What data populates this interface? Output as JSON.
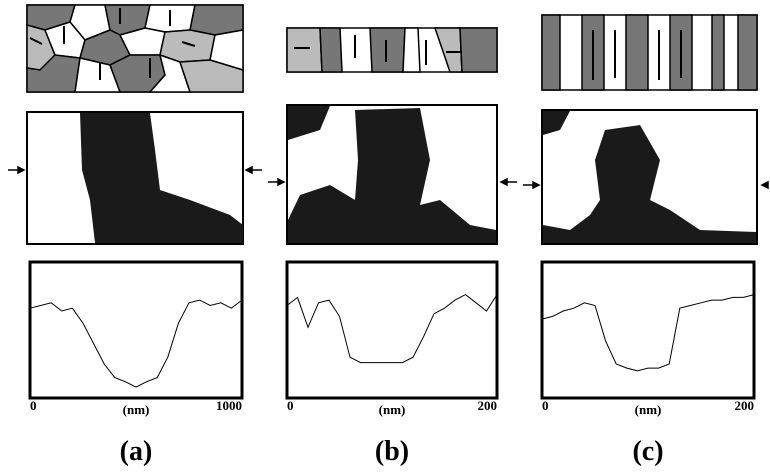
{
  "chart_data": [
    {
      "type": "line",
      "label": "(a)",
      "xlabel": "(nm)",
      "xlim": [
        0,
        1000
      ],
      "xticks": [
        0,
        1000
      ],
      "ylim": [
        0,
        1
      ],
      "x": [
        0,
        50,
        100,
        150,
        200,
        250,
        300,
        350,
        400,
        450,
        500,
        550,
        600,
        650,
        700,
        750,
        800,
        850,
        900,
        950,
        1000
      ],
      "values": [
        0.66,
        0.68,
        0.7,
        0.64,
        0.66,
        0.55,
        0.4,
        0.25,
        0.15,
        0.12,
        0.08,
        0.12,
        0.15,
        0.3,
        0.55,
        0.7,
        0.72,
        0.68,
        0.7,
        0.66,
        0.72
      ],
      "color": "#000000"
    },
    {
      "type": "line",
      "label": "(b)",
      "xlabel": "(nm)",
      "xlim": [
        0,
        200
      ],
      "xticks": [
        0,
        200
      ],
      "ylim": [
        0,
        1
      ],
      "x": [
        0,
        10,
        20,
        30,
        40,
        50,
        60,
        70,
        80,
        90,
        100,
        110,
        120,
        130,
        140,
        150,
        160,
        170,
        180,
        190,
        200
      ],
      "values": [
        0.68,
        0.74,
        0.52,
        0.7,
        0.72,
        0.6,
        0.3,
        0.26,
        0.26,
        0.26,
        0.26,
        0.26,
        0.3,
        0.45,
        0.62,
        0.66,
        0.72,
        0.76,
        0.7,
        0.64,
        0.76
      ],
      "color": "#000000"
    },
    {
      "type": "line",
      "label": "(c)",
      "xlabel": "(nm)",
      "xlim": [
        0,
        200
      ],
      "xticks": [
        0,
        200
      ],
      "ylim": [
        0,
        1
      ],
      "x": [
        0,
        10,
        20,
        30,
        40,
        50,
        60,
        70,
        80,
        90,
        100,
        110,
        120,
        130,
        140,
        150,
        160,
        170,
        180,
        190,
        200
      ],
      "values": [
        0.58,
        0.6,
        0.64,
        0.66,
        0.7,
        0.68,
        0.42,
        0.25,
        0.22,
        0.2,
        0.22,
        0.22,
        0.25,
        0.66,
        0.68,
        0.7,
        0.72,
        0.72,
        0.74,
        0.74,
        0.76
      ],
      "color": "#000000"
    }
  ]
}
